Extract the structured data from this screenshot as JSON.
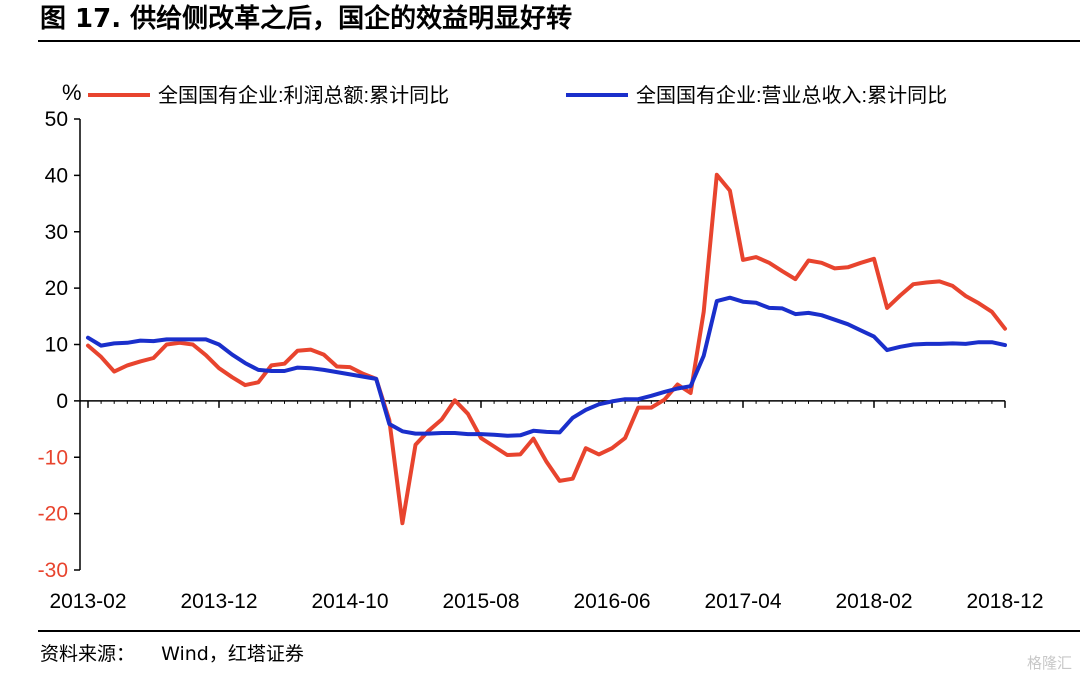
{
  "figure": {
    "title": "图 17. 供给侧改革之后，国企的效益明显好转",
    "source_label": "资料来源：",
    "source_value": "Wind，红塔证券",
    "watermark": "格隆汇"
  },
  "chart_data": {
    "type": "line",
    "title": "",
    "xlabel": "",
    "ylabel": "%",
    "ylim": [
      -30,
      50
    ],
    "yticks": [
      -30,
      -20,
      -10,
      0,
      10,
      20,
      30,
      40,
      50
    ],
    "xtick_labels": [
      "2013-02",
      "2013-12",
      "2014-10",
      "2015-08",
      "2016-06",
      "2017-04",
      "2018-02",
      "2018-12"
    ],
    "x": [
      "2013-02",
      "2013-03",
      "2013-04",
      "2013-05",
      "2013-06",
      "2013-07",
      "2013-08",
      "2013-09",
      "2013-10",
      "2013-11",
      "2013-12",
      "2014-01",
      "2014-02",
      "2014-03",
      "2014-04",
      "2014-05",
      "2014-06",
      "2014-07",
      "2014-08",
      "2014-09",
      "2014-10",
      "2014-11",
      "2014-12",
      "2015-01",
      "2015-02",
      "2015-03",
      "2015-04",
      "2015-05",
      "2015-06",
      "2015-07",
      "2015-08",
      "2015-09",
      "2015-10",
      "2015-11",
      "2015-12",
      "2016-01",
      "2016-02",
      "2016-03",
      "2016-04",
      "2016-05",
      "2016-06",
      "2016-07",
      "2016-08",
      "2016-09",
      "2016-10",
      "2016-11",
      "2016-12",
      "2017-01",
      "2017-02",
      "2017-03",
      "2017-04",
      "2017-05",
      "2017-06",
      "2017-07",
      "2017-08",
      "2017-09",
      "2017-10",
      "2017-11",
      "2017-12",
      "2018-01",
      "2018-02",
      "2018-03",
      "2018-04",
      "2018-05",
      "2018-06",
      "2018-07",
      "2018-08",
      "2018-09",
      "2018-10",
      "2018-11",
      "2018-12"
    ],
    "grid": false,
    "legend_position": "top",
    "series": [
      {
        "name": "全国国有企业:利润总额:累计同比",
        "color": "#e8442e",
        "values": [
          9.8,
          7.8,
          5.2,
          6.3,
          7.0,
          7.6,
          10.0,
          10.3,
          10.0,
          8.1,
          5.8,
          4.2,
          2.8,
          3.3,
          6.3,
          6.6,
          8.9,
          9.1,
          8.2,
          6.1,
          6.0,
          4.8,
          3.9,
          -3.4,
          -21.7,
          -7.8,
          -5.3,
          -3.3,
          0.1,
          -2.3,
          -6.6,
          -8.1,
          -9.6,
          -9.5,
          -6.7,
          -10.8,
          -14.2,
          -13.8,
          -8.4,
          -9.5,
          -8.4,
          -6.6,
          -1.2,
          -1.2,
          0.2,
          2.9,
          1.4,
          15.8,
          40.1,
          37.3,
          25.0,
          25.5,
          24.5,
          23.0,
          21.6,
          24.9,
          24.5,
          23.5,
          23.7,
          24.5,
          25.2,
          16.5,
          18.7,
          20.7,
          21.0,
          21.2,
          20.4,
          18.6,
          17.3,
          15.8,
          12.8
        ]
      },
      {
        "name": "全国国有企业:营业总收入:累计同比",
        "color": "#1a2fcb",
        "values": [
          11.2,
          9.8,
          10.2,
          10.3,
          10.7,
          10.6,
          10.9,
          10.9,
          10.9,
          10.9,
          10.0,
          8.2,
          6.7,
          5.5,
          5.3,
          5.3,
          5.9,
          5.8,
          5.5,
          5.1,
          4.7,
          4.3,
          3.9,
          -4.1,
          -5.4,
          -5.8,
          -5.8,
          -5.7,
          -5.7,
          -5.9,
          -5.9,
          -6.0,
          -6.2,
          -6.1,
          -5.3,
          -5.5,
          -5.6,
          -3.0,
          -1.6,
          -0.6,
          -0.1,
          0.3,
          0.3,
          0.9,
          1.6,
          2.2,
          2.6,
          8.0,
          17.7,
          18.3,
          17.6,
          17.4,
          16.5,
          16.4,
          15.4,
          15.6,
          15.2,
          14.4,
          13.6,
          12.5,
          11.4,
          9.0,
          9.6,
          10.0,
          10.1,
          10.1,
          10.2,
          10.1,
          10.4,
          10.4,
          9.9
        ]
      }
    ]
  }
}
